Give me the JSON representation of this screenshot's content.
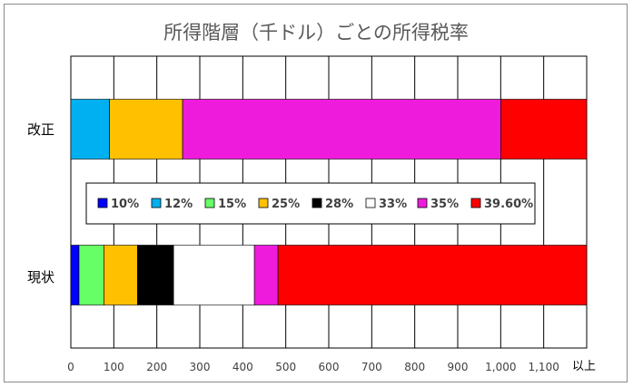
{
  "chart_data": {
    "type": "bar",
    "orientation": "horizontal",
    "stacked": true,
    "title": "所得階層（千ドル）ごとの所得税率",
    "categories": [
      "改正",
      "現状"
    ],
    "unit_label": "以上",
    "xlim": [
      0,
      1200
    ],
    "x_ticks": [
      0,
      100,
      200,
      300,
      400,
      500,
      600,
      700,
      800,
      900,
      1000,
      1100
    ],
    "x_tick_labels": [
      "0",
      "100",
      "200",
      "300",
      "400",
      "500",
      "600",
      "700",
      "800",
      "900",
      "1,000",
      "1,100"
    ],
    "grid": true,
    "legend_position": "center",
    "series": [
      {
        "name": "10%",
        "color": "#0000FF",
        "values": [
          0,
          19
        ]
      },
      {
        "name": "12%",
        "color": "#00B0F0",
        "values": [
          90,
          0
        ]
      },
      {
        "name": "15%",
        "color": "#66FF66",
        "values": [
          0,
          58
        ]
      },
      {
        "name": "25%",
        "color": "#FFC000",
        "values": [
          170,
          78
        ]
      },
      {
        "name": "28%",
        "color": "#000000",
        "values": [
          0,
          84
        ]
      },
      {
        "name": "33%",
        "color": "#FFFFFF",
        "values": [
          0,
          188
        ]
      },
      {
        "name": "35%",
        "color": "#EE1BDD",
        "values": [
          740,
          55
        ]
      },
      {
        "name": "39.60%",
        "color": "#FF0000",
        "values": [
          200,
          718
        ]
      }
    ]
  }
}
